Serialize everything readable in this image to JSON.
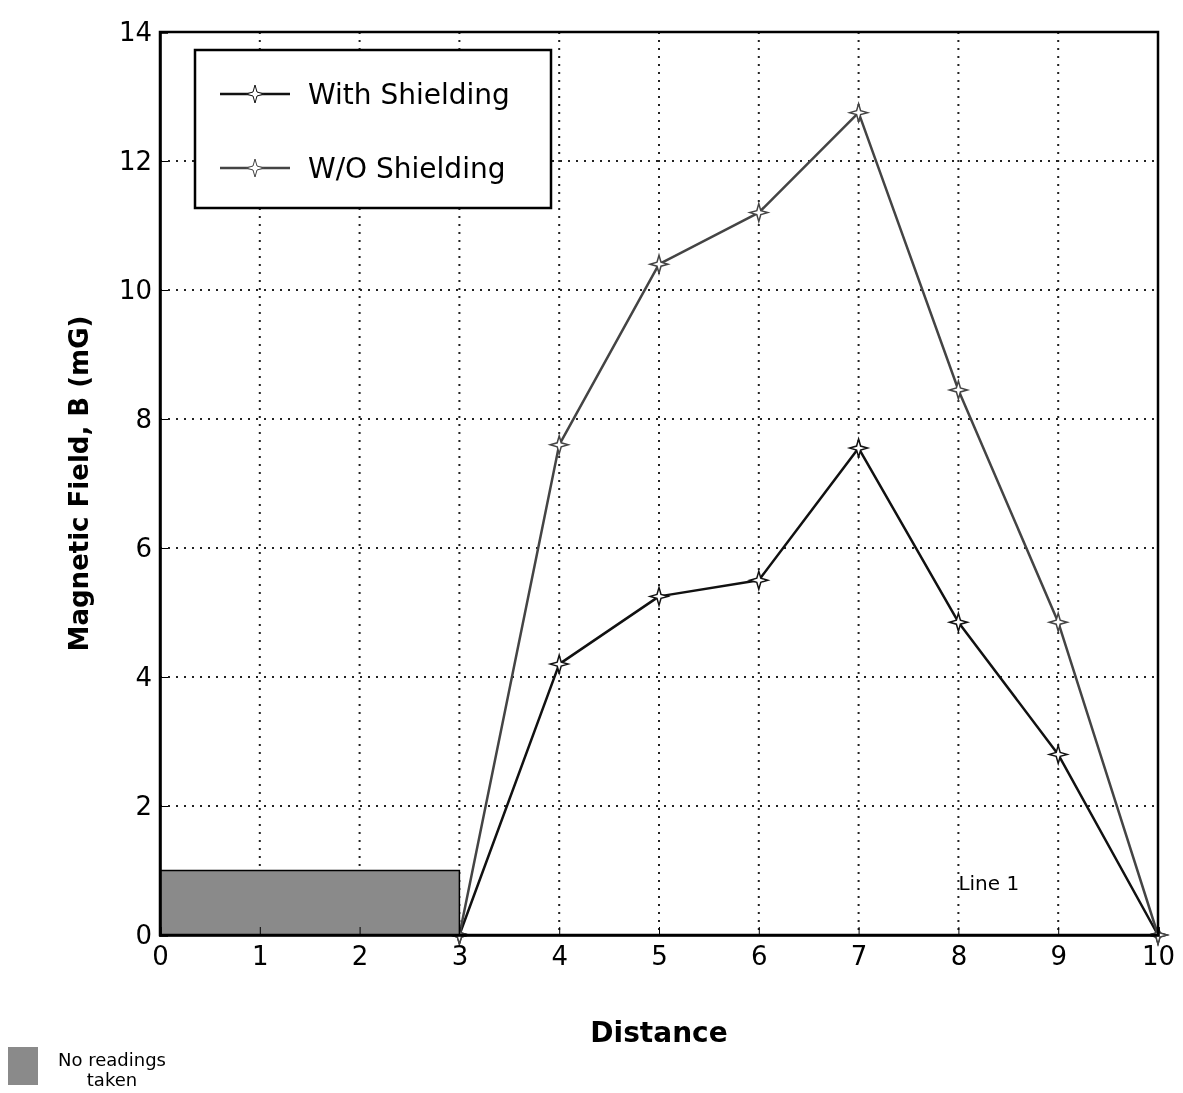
{
  "chart_data": {
    "type": "line",
    "xlabel": "Distance",
    "ylabel": "Magnetic Field, B (mG)",
    "x": [
      3,
      4,
      5,
      6,
      7,
      8,
      9,
      10
    ],
    "series": [
      {
        "name": "With Shielding",
        "color": "#111111",
        "values": [
          0,
          4.2,
          5.25,
          5.5,
          7.55,
          4.85,
          2.8,
          0
        ]
      },
      {
        "name": "W/O Shielding",
        "color": "#444444",
        "values": [
          0,
          7.6,
          10.4,
          11.2,
          12.75,
          8.45,
          4.85,
          0
        ]
      },
      {
        "type": "area",
        "color": "#8a8a8a",
        "x": [
          0,
          3
        ],
        "values": [
          1,
          1
        ],
        "marker": "none"
      }
    ],
    "xlim": [
      0,
      10
    ],
    "xticks": [
      0,
      1,
      2,
      3,
      4,
      5,
      6,
      7,
      8,
      9,
      10
    ],
    "ylim": [
      0,
      14
    ],
    "yticks": [
      0,
      2,
      4,
      6,
      8,
      10,
      12,
      14
    ],
    "grid": true,
    "legend": "top left",
    "marker": "star",
    "line_style": "solid",
    "annotations": [
      "Line 1",
      "No readings taken"
    ]
  }
}
